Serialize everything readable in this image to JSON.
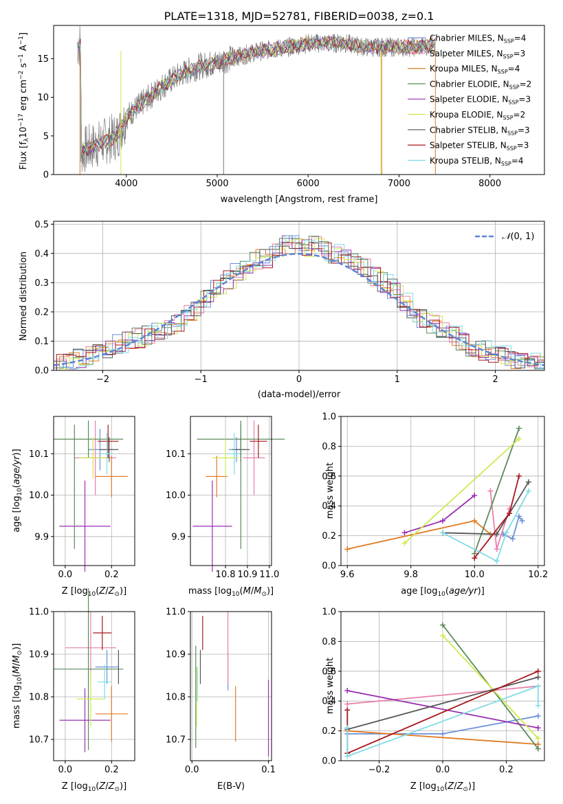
{
  "title": "PLATE=1318, MJD=52781, FIBERID=0038, z=0.1",
  "colors": {
    "Chabrier MILES": "#6a8fd6",
    "Salpeter MILES": "#e87ea9",
    "Kroupa MILES": "#e07b23",
    "Chabrier ELODIE": "#5a8a5a",
    "Salpeter ELODIE": "#9a2eb0",
    "Kroupa ELODIE": "#cde84e",
    "Chabrier STELIB": "#555555",
    "Salpeter STELIB": "#a8161b",
    "Kroupa STELIB": "#7fdbe5"
  },
  "legend1": [
    "Chabrier MILES, N$_{SSP}$=4",
    "Salpeter MILES, N$_{SSP}$=3",
    "Kroupa MILES, N$_{SSP}$=4",
    "Chabrier ELODIE, N$_{SSP}$=2",
    "Salpeter ELODIE, N$_{SSP}$=3",
    "Kroupa ELODIE, N$_{SSP}$=2",
    "Chabrier STELIB, N$_{SSP}$=3",
    "Salpeter STELIB, N$_{SSP}$=3",
    "Kroupa STELIB, N$_{SSP}$=4"
  ],
  "legend1_display": [
    {
      "pre": "Chabrier MILES, N",
      "sub": "SSP",
      "post": "=4"
    },
    {
      "pre": "Salpeter MILES, N",
      "sub": "SSP",
      "post": "=3"
    },
    {
      "pre": "Kroupa MILES, N",
      "sub": "SSP",
      "post": "=4"
    },
    {
      "pre": "Chabrier ELODIE, N",
      "sub": "SSP",
      "post": "=2"
    },
    {
      "pre": "Salpeter ELODIE, N",
      "sub": "SSP",
      "post": "=3"
    },
    {
      "pre": "Kroupa ELODIE, N",
      "sub": "SSP",
      "post": "=2"
    },
    {
      "pre": "Chabrier STELIB, N",
      "sub": "SSP",
      "post": "=3"
    },
    {
      "pre": "Salpeter STELIB, N",
      "sub": "SSP",
      "post": "=3"
    },
    {
      "pre": "Kroupa STELIB, N",
      "sub": "SSP",
      "post": "=4"
    }
  ],
  "chart_data": [
    {
      "type": "line",
      "xlabel": "wavelength [Angstrom, rest frame]",
      "ylabel": "Flux [f_λ10^{-17} erg cm^{-2} s^{-1} A^{-1}]",
      "xlim": [
        3200,
        8600
      ],
      "ylim": [
        0,
        19.3
      ],
      "xticks": [
        4000,
        5000,
        6000,
        7000,
        8000
      ],
      "yticks": [
        0,
        5,
        10,
        15
      ],
      "spectrum_envelope": {
        "x": [
          3500,
          3700,
          3900,
          4000,
          4200,
          4400,
          4600,
          4800,
          5000,
          5200,
          5400,
          5600,
          5800,
          6000,
          6200,
          6400,
          6600,
          6800,
          7000,
          7200,
          7400
        ],
        "y": [
          3.0,
          4.0,
          5.0,
          7.5,
          9.5,
          11.5,
          13.0,
          14.0,
          14.5,
          15.2,
          15.8,
          16.2,
          16.5,
          17.0,
          17.0,
          17.0,
          16.5,
          16.5,
          16.5,
          16.5,
          16.8
        ]
      }
    },
    {
      "type": "bar",
      "xlabel": "(data-model)/error",
      "ylabel": "Normed distribution",
      "xlim": [
        -2.5,
        2.5
      ],
      "ylim": [
        0,
        0.51
      ],
      "xticks": [
        -2,
        -1,
        0,
        1,
        2
      ],
      "yticks": [
        0.0,
        0.1,
        0.2,
        0.3,
        0.4,
        0.5
      ],
      "legend": "$\\mathcal{N}(0,1)$",
      "bin_width": 0.1,
      "histogram_x": [
        -2.45,
        -2.35,
        -2.25,
        -2.15,
        -2.05,
        -1.95,
        -1.85,
        -1.75,
        -1.65,
        -1.55,
        -1.45,
        -1.35,
        -1.25,
        -1.15,
        -1.05,
        -0.95,
        -0.85,
        -0.75,
        -0.65,
        -0.55,
        -0.45,
        -0.35,
        -0.25,
        -0.15,
        -0.05,
        0.05,
        0.15,
        0.25,
        0.35,
        0.45,
        0.55,
        0.65,
        0.75,
        0.85,
        0.95,
        1.05,
        1.15,
        1.25,
        1.35,
        1.45,
        1.55,
        1.65,
        1.75,
        1.85,
        1.95,
        2.05,
        2.15,
        2.25,
        2.35,
        2.45
      ],
      "histogram_y": [
        0.02,
        0.03,
        0.04,
        0.05,
        0.06,
        0.07,
        0.09,
        0.1,
        0.11,
        0.12,
        0.13,
        0.14,
        0.16,
        0.19,
        0.22,
        0.25,
        0.28,
        0.31,
        0.34,
        0.36,
        0.38,
        0.38,
        0.4,
        0.43,
        0.44,
        0.42,
        0.43,
        0.41,
        0.4,
        0.39,
        0.37,
        0.35,
        0.32,
        0.3,
        0.28,
        0.24,
        0.2,
        0.18,
        0.16,
        0.14,
        0.12,
        0.1,
        0.08,
        0.07,
        0.06,
        0.05,
        0.04,
        0.04,
        0.03,
        0.02
      ]
    },
    {
      "type": "scatter",
      "xlabel": "Z [$\\log_{10}(Z/Z_\\odot)$]",
      "ylabel": "age  [$\\log_{10}(age/yr)$]",
      "xlim": [
        -0.05,
        0.3
      ],
      "ylim": [
        9.83,
        10.19
      ],
      "xticks": [
        0.0,
        0.2
      ],
      "yticks": [
        9.9,
        10.0,
        10.1
      ],
      "points": [
        {
          "c": "Chabrier MILES",
          "x": 0.15,
          "xe": 0.05,
          "y": 10.11,
          "ye": 0.05
        },
        {
          "c": "Salpeter MILES",
          "x": 0.13,
          "xe": 0.09,
          "y": 10.09,
          "ye": 0.09
        },
        {
          "c": "Kroupa MILES",
          "x": 0.2,
          "xe": 0.07,
          "y": 10.045,
          "ye": 0.05
        },
        {
          "c": "Chabrier ELODIE",
          "x": 0.1,
          "xe": 0.15,
          "y": 10.135,
          "ye": 0.045
        },
        {
          "c": "Salpeter ELODIE",
          "x": 0.085,
          "xe": 0.11,
          "y": 9.925,
          "ye": 0.11
        },
        {
          "c": "Kroupa ELODIE",
          "x": 0.12,
          "xe": 0.06,
          "y": 10.09,
          "ye": 0.05
        },
        {
          "c": "Chabrier STELIB",
          "x": 0.19,
          "xe": 0.04,
          "y": 10.11,
          "ye": 0.03
        },
        {
          "c": "Salpeter STELIB",
          "x": 0.185,
          "xe": 0.045,
          "y": 10.13,
          "ye": 0.04
        },
        {
          "c": "Kroupa STELIB",
          "x": 0.18,
          "xe": 0.03,
          "y": 10.1,
          "ye": 0.05
        },
        {
          "c": "Chabrier ELODIE",
          "x": 0.04,
          "xe": 0.0,
          "y": 10.02,
          "ye": 0.15
        }
      ]
    },
    {
      "type": "scatter",
      "xlabel": "mass [$\\log_{10}(M/M_\\odot)$]",
      "ylabel": "",
      "xlim": [
        10.64,
        11.01
      ],
      "ylim": [
        9.83,
        10.19
      ],
      "xticks": [
        10.8,
        10.9,
        11.0
      ],
      "yticks": [
        9.9,
        10.0,
        10.1
      ],
      "points": [
        {
          "c": "Chabrier MILES",
          "x": 10.85,
          "xe": 0.035,
          "y": 10.11,
          "ye": 0.03
        },
        {
          "c": "Salpeter MILES",
          "x": 10.93,
          "xe": 0.05,
          "y": 10.09,
          "ye": 0.09
        },
        {
          "c": "Kroupa MILES",
          "x": 10.76,
          "xe": 0.05,
          "y": 10.045,
          "ye": 0.05
        },
        {
          "c": "Chabrier ELODIE",
          "x": 10.87,
          "xe": 0.2,
          "y": 10.135,
          "ye": 0.045
        },
        {
          "c": "Salpeter ELODIE",
          "x": 10.74,
          "xe": 0.09,
          "y": 9.925,
          "ye": 0.11
        },
        {
          "c": "Kroupa ELODIE",
          "x": 10.8,
          "xe": 0.06,
          "y": 10.09,
          "ye": 0.045
        },
        {
          "c": "Chabrier STELIB",
          "x": 10.87,
          "xe": 0.04,
          "y": 10.11,
          "ye": 0.03
        },
        {
          "c": "Salpeter STELIB",
          "x": 10.95,
          "xe": 0.04,
          "y": 10.13,
          "ye": 0.04
        },
        {
          "c": "Kroupa STELIB",
          "x": 10.84,
          "xe": 0.03,
          "y": 10.1,
          "ye": 0.05
        },
        {
          "c": "Chabrier ELODIE",
          "x": 10.87,
          "xe": 0.0,
          "y": 10.02,
          "ye": 0.15
        }
      ]
    },
    {
      "type": "line",
      "xlabel": "age  [$\\log_{10}(age/yr)$]",
      "ylabel": "mass weight",
      "xlim": [
        9.58,
        10.22
      ],
      "ylim": [
        0,
        1
      ],
      "xticks": [
        9.6,
        9.8,
        10.0,
        10.2
      ],
      "yticks": [
        0.0,
        0.2,
        0.4,
        0.6,
        0.8,
        1.0
      ],
      "series": [
        {
          "c": "Chabrier MILES",
          "x": [
            10.09,
            10.12,
            10.14,
            10.15
          ],
          "y": [
            0.21,
            0.18,
            0.33,
            0.3
          ]
        },
        {
          "c": "Salpeter MILES",
          "x": [
            10.05,
            10.07,
            10.11
          ],
          "y": [
            0.5,
            0.11,
            0.38
          ]
        },
        {
          "c": "Kroupa MILES",
          "x": [
            9.6,
            10.0,
            10.05
          ],
          "y": [
            0.11,
            0.3,
            0.21
          ]
        },
        {
          "c": "Chabrier ELODIE",
          "x": [
            10.0,
            10.14
          ],
          "y": [
            0.08,
            0.92
          ]
        },
        {
          "c": "Salpeter ELODIE",
          "x": [
            9.78,
            9.9,
            10.0
          ],
          "y": [
            0.22,
            0.3,
            0.47
          ]
        },
        {
          "c": "Kroupa ELODIE",
          "x": [
            9.78,
            10.14
          ],
          "y": [
            0.15,
            0.85
          ]
        },
        {
          "c": "Chabrier STELIB",
          "x": [
            9.9,
            10.07,
            10.17
          ],
          "y": [
            0.22,
            0.21,
            0.56
          ]
        },
        {
          "c": "Salpeter STELIB",
          "x": [
            10.0,
            10.11,
            10.14
          ],
          "y": [
            0.05,
            0.35,
            0.6
          ]
        },
        {
          "c": "Kroupa STELIB",
          "x": [
            9.9,
            10.07,
            10.1,
            10.17
          ],
          "y": [
            0.22,
            0.03,
            0.22,
            0.5
          ]
        }
      ]
    },
    {
      "type": "scatter",
      "xlabel": "Z [$\\log_{10}(Z/Z_\\odot)$]",
      "ylabel": "mass [$\\log_{10}(M/M_\\odot)$]",
      "xlim": [
        -0.05,
        0.3
      ],
      "ylim": [
        10.65,
        11.0
      ],
      "xticks": [
        0.0,
        0.2
      ],
      "yticks": [
        10.7,
        10.8,
        10.9,
        11.0
      ],
      "points": [
        {
          "c": "Chabrier MILES",
          "x": 0.18,
          "xe": 0.05,
          "y": 10.87,
          "ye": 0.04
        },
        {
          "c": "Salpeter MILES",
          "x": 0.11,
          "xe": 0.11,
          "y": 10.915,
          "ye": 0.085
        },
        {
          "c": "Kroupa MILES",
          "x": 0.2,
          "xe": 0.07,
          "y": 10.76,
          "ye": 0.065
        },
        {
          "c": "Chabrier ELODIE",
          "x": 0.1,
          "xe": 0.15,
          "y": 10.865,
          "ye": 0.19
        },
        {
          "c": "Salpeter ELODIE",
          "x": 0.085,
          "xe": 0.11,
          "y": 10.745,
          "ye": 0.075
        },
        {
          "c": "Kroupa ELODIE",
          "x": 0.11,
          "xe": 0.06,
          "y": 10.795,
          "ye": 0.065
        },
        {
          "c": "Chabrier STELIB",
          "x": 0.23,
          "xe": 0.0,
          "y": 10.87,
          "ye": 0.04
        },
        {
          "c": "Salpeter STELIB",
          "x": 0.16,
          "xe": 0.04,
          "y": 10.95,
          "ye": 0.04
        },
        {
          "c": "Kroupa STELIB",
          "x": 0.17,
          "xe": 0.03,
          "y": 10.835,
          "ye": 0.04
        }
      ]
    },
    {
      "type": "scatter",
      "xlabel": "E(B-V)",
      "ylabel": "",
      "xlim": [
        -0.002,
        0.104
      ],
      "ylim": [
        10.65,
        11.0
      ],
      "xticks": [
        0.0,
        0.1
      ],
      "yticks": [
        10.7,
        10.8,
        10.9,
        11.0
      ],
      "points": [
        {
          "c": "Chabrier MILES",
          "x": 0.047,
          "xe": 0,
          "y": 10.86,
          "ye": 0.045
        },
        {
          "c": "Salpeter MILES",
          "x": 0.047,
          "xe": 0,
          "y": 10.915,
          "ye": 0.085
        },
        {
          "c": "Kroupa MILES",
          "x": 0.057,
          "xe": 0,
          "y": 10.76,
          "ye": 0.065
        },
        {
          "c": "Chabrier ELODIE",
          "x": 0.005,
          "xe": 0,
          "y": 10.8,
          "ye": 0.12
        },
        {
          "c": "Salpeter ELODIE",
          "x": 0.1,
          "xe": 0,
          "y": 10.75,
          "ye": 0.09
        },
        {
          "c": "Kroupa ELODIE",
          "x": 0.006,
          "xe": 0,
          "y": 10.8,
          "ye": 0.07
        },
        {
          "c": "Chabrier STELIB",
          "x": 0.011,
          "xe": 0,
          "y": 10.87,
          "ye": 0.04
        },
        {
          "c": "Salpeter STELIB",
          "x": 0.014,
          "xe": 0,
          "y": 10.95,
          "ye": 0.04
        },
        {
          "c": "Kroupa STELIB",
          "x": 0.007,
          "xe": 0,
          "y": 10.83,
          "ye": 0.04
        }
      ]
    },
    {
      "type": "line",
      "xlabel": "Z [$\\log_{10}(Z/Z_\\odot)$]",
      "ylabel": "mass weight",
      "xlim": [
        -0.32,
        0.32
      ],
      "ylim": [
        0,
        1
      ],
      "xticks": [
        -0.2,
        0.0,
        0.2
      ],
      "yticks": [
        0.0,
        0.2,
        0.4,
        0.6,
        0.8,
        1.0
      ],
      "series": [
        {
          "c": "Chabrier MILES",
          "x": [
            -0.3,
            0.0,
            0.3
          ],
          "y": [
            0.18,
            0.18,
            0.3
          ]
        },
        {
          "c": "Salpeter MILES",
          "x": [
            -0.3,
            0.3
          ],
          "y": [
            0.38,
            0.5
          ]
        },
        {
          "c": "Kroupa MILES",
          "x": [
            -0.3,
            0.3
          ],
          "y": [
            0.2,
            0.11
          ]
        },
        {
          "c": "Chabrier ELODIE",
          "x": [
            0.0,
            0.3
          ],
          "y": [
            0.91,
            0.08
          ]
        },
        {
          "c": "Salpeter ELODIE",
          "x": [
            -0.3,
            0.3
          ],
          "y": [
            0.47,
            0.22
          ]
        },
        {
          "c": "Kroupa ELODIE",
          "x": [
            0.0,
            0.3
          ],
          "y": [
            0.84,
            0.15
          ]
        },
        {
          "c": "Chabrier STELIB",
          "x": [
            -0.3,
            0.3
          ],
          "y": [
            0.21,
            0.56
          ]
        },
        {
          "c": "Salpeter STELIB",
          "x": [
            -0.3,
            -0.3,
            0.3
          ],
          "y": [
            0.34,
            0.05,
            0.6
          ]
        },
        {
          "c": "Kroupa STELIB",
          "x": [
            -0.3,
            -0.3,
            0.3,
            0.3
          ],
          "y": [
            0.22,
            0.03,
            0.5,
            0.37
          ]
        }
      ]
    }
  ]
}
